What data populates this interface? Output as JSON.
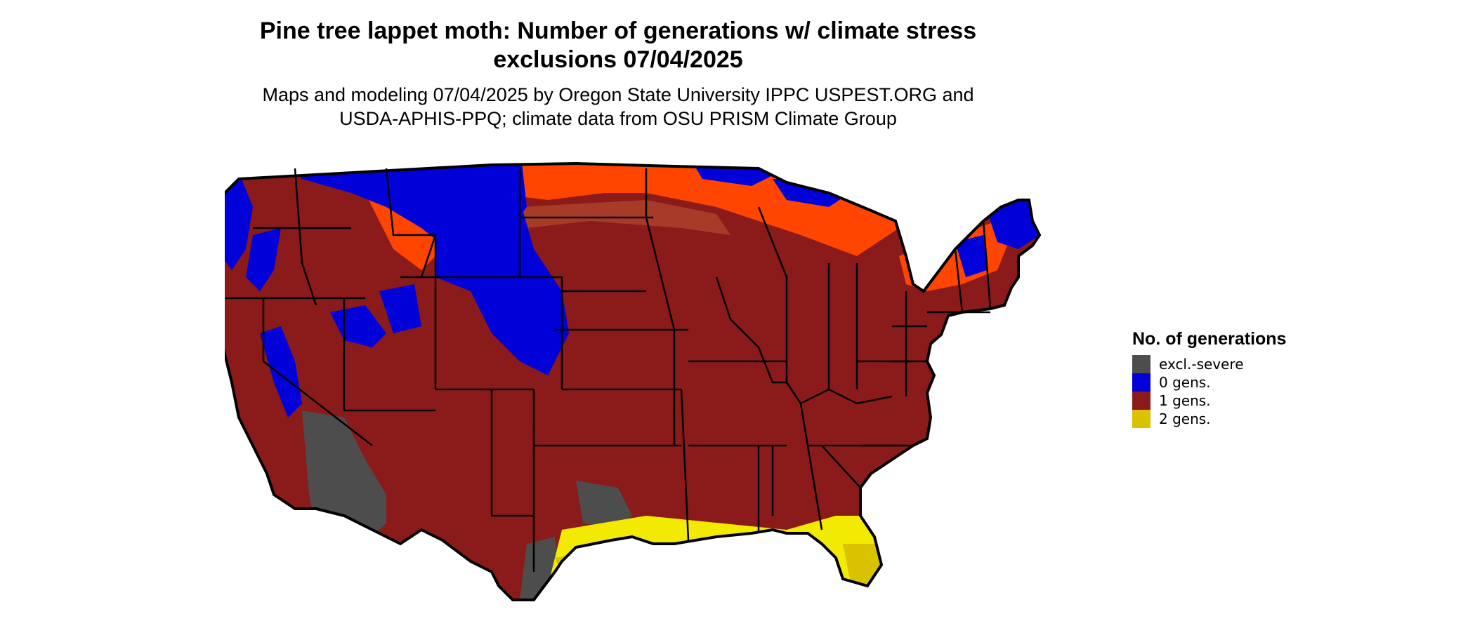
{
  "title": "Pine tree lappet moth: Number of generations w/ climate stress exclusions 07/04/2025",
  "subtitle_lines": [
    "Maps and modeling 07/04/2025 by Oregon State University IPPC USPEST.ORG and",
    "USDA-APHIS-PPQ; climate data from OSU PRISM Climate Group"
  ],
  "legend": {
    "title": "No. of generations",
    "items": [
      {
        "label": "excl.-severe",
        "color": "#4d4d4d"
      },
      {
        "label": "0 gens.",
        "color": "#0000d8"
      },
      {
        "label": "1 gens.",
        "color": "#8b1a1a"
      },
      {
        "label": "2 gens.",
        "color": "#d9c200"
      }
    ]
  },
  "map_colors": {
    "background": "#8b1a1a",
    "northern_warm": "#ff4500",
    "gradient": "#a83a28",
    "cold_zone": "#0000d8",
    "excluded": "#4d4d4d",
    "two_gen": "#f2ea00",
    "two_gen_dark": "#d9c200",
    "state_borders": "#000000"
  }
}
